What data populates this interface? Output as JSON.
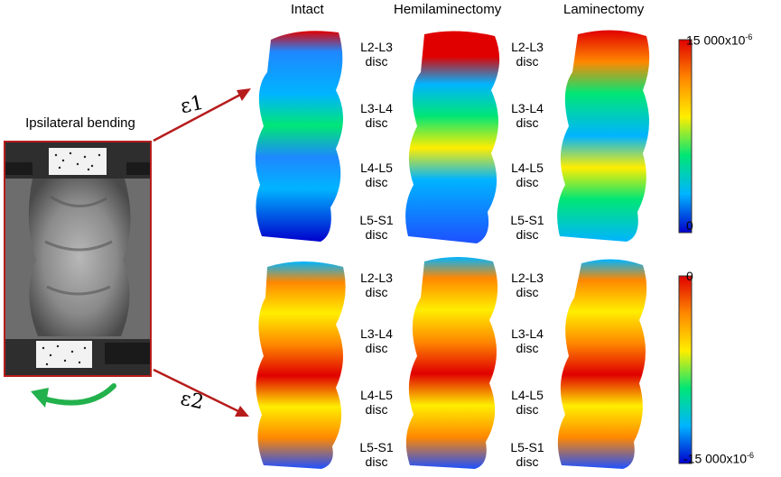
{
  "columns": [
    "Intact",
    "Hemilaminectomy",
    "Laminectomy"
  ],
  "discs": [
    {
      "line1": "L2-L3",
      "line2": "disc"
    },
    {
      "line1": "L3-L4",
      "line2": "disc"
    },
    {
      "line1": "L4-L5",
      "line2": "disc"
    },
    {
      "line1": "L5-S1",
      "line2": "disc"
    }
  ],
  "loading_case": "Ipsilateral bending",
  "strain_labels": {
    "e1": "ε1",
    "e2": "ε2"
  },
  "colorbars": {
    "e1": {
      "max": "15 000x10",
      "max_exp": "-6",
      "min": "0"
    },
    "e2": {
      "max": "0",
      "min": "-15 000x10",
      "min_exp": "-6"
    }
  },
  "colors": {
    "frame": "#b71c1c",
    "arrow": "#b71c1c",
    "rotation_arrow": "#22b14c",
    "colormap": [
      "#0000cc",
      "#00b4ff",
      "#00e676",
      "#ffee00",
      "#ff8800",
      "#e00000"
    ]
  }
}
